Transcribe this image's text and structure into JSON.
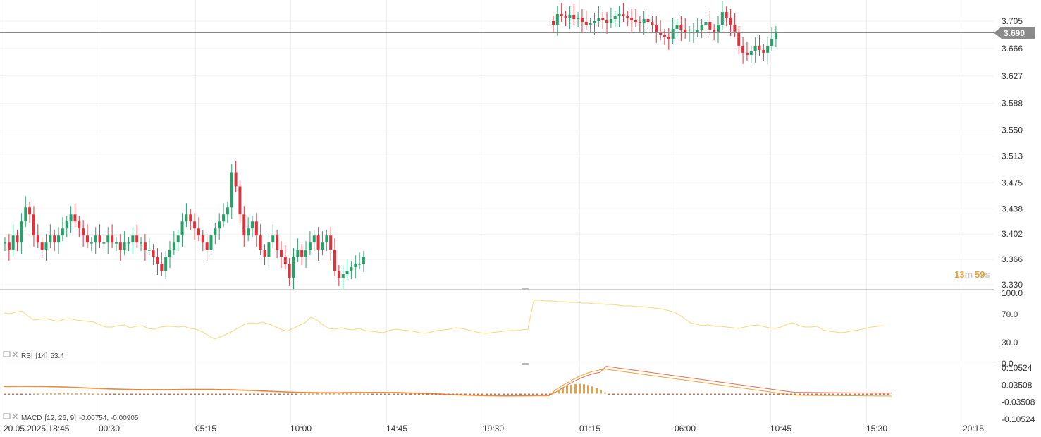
{
  "chart_data": [
    {
      "type": "candlestick",
      "title": "",
      "ylim": [
        3.33,
        3.705
      ],
      "y_ticks": [
        "3.705",
        "3.666",
        "3.627",
        "3.588",
        "3.550",
        "3.513",
        "3.475",
        "3.438",
        "3.402",
        "3.366",
        "3.330"
      ],
      "x_ticks": [
        "20.05.2025 18:45",
        "00:30",
        "05:15",
        "10:00",
        "14:45",
        "19:30",
        "01:15",
        "06:00",
        "10:45",
        "15:30",
        "20:15"
      ],
      "last_price": "3.690",
      "countdown": {
        "minutes": "13",
        "m": "m",
        "seconds": "59",
        "s": "s"
      },
      "colors": {
        "up": "#26a269",
        "down": "#e0313c",
        "price_line": "#888888",
        "badge": "#8a8a8a"
      },
      "close_segment_1": [
        3.39,
        3.38,
        3.4,
        3.39,
        3.42,
        3.44,
        3.43,
        3.4,
        3.39,
        3.38,
        3.39,
        3.4,
        3.39,
        3.4,
        3.41,
        3.42,
        3.43,
        3.42,
        3.41,
        3.4,
        3.39,
        3.39,
        3.4,
        3.39,
        3.39,
        3.4,
        3.39,
        3.39,
        3.38,
        3.39,
        3.39,
        3.4,
        3.39,
        3.39,
        3.38,
        3.38,
        3.37,
        3.36,
        3.35,
        3.37,
        3.38,
        3.39,
        3.4,
        3.42,
        3.43,
        3.42,
        3.41,
        3.4,
        3.39,
        3.38,
        3.4,
        3.41,
        3.42,
        3.43,
        3.44,
        3.49,
        3.47,
        3.43,
        3.4,
        3.41,
        3.42,
        3.4,
        3.38,
        3.37,
        3.39,
        3.4,
        3.38,
        3.37,
        3.36,
        3.34,
        3.37,
        3.38,
        3.37,
        3.38,
        3.39,
        3.4,
        3.38,
        3.39,
        3.4,
        3.38,
        3.35,
        3.34,
        3.345,
        3.35,
        3.355,
        3.36,
        3.36,
        3.37
      ],
      "close_segment_2": [
        3.7,
        3.715,
        3.712,
        3.71,
        3.714,
        3.708,
        3.71,
        3.704,
        3.7,
        3.702,
        3.705,
        3.71,
        3.706,
        3.703,
        3.708,
        3.712,
        3.715,
        3.712,
        3.71,
        3.706,
        3.704,
        3.702,
        3.708,
        3.704,
        3.7,
        3.69,
        3.686,
        3.683,
        3.68,
        3.694,
        3.7,
        3.693,
        3.688,
        3.69,
        3.69,
        3.693,
        3.7,
        3.704,
        3.693,
        3.69,
        3.7,
        3.718,
        3.71,
        3.7,
        3.69,
        3.67,
        3.66,
        3.657,
        3.662,
        3.67,
        3.664,
        3.66,
        3.67,
        3.68,
        3.69
      ]
    },
    {
      "type": "line",
      "name": "RSI",
      "params": "[14]",
      "value": "53.4",
      "ylim": [
        0,
        100
      ],
      "y_ticks": [
        "100.0",
        "70.0",
        "30.0",
        "0.0"
      ],
      "color": "#f6d77a",
      "values": [
        72,
        71,
        73,
        75,
        68,
        62,
        63,
        64,
        62,
        60,
        63,
        64,
        62,
        61,
        60,
        59,
        55,
        52,
        52,
        54,
        55,
        51,
        53,
        54,
        50,
        49,
        52,
        53,
        53,
        52,
        53,
        50,
        49,
        45,
        40,
        35,
        38,
        42,
        46,
        51,
        56,
        58,
        57,
        59,
        56,
        53,
        49,
        46,
        50,
        54,
        58,
        66,
        62,
        55,
        50,
        49,
        51,
        49,
        48,
        50,
        47,
        46,
        45,
        44,
        47,
        49,
        48,
        47,
        46,
        44,
        43,
        45,
        47,
        48,
        49,
        51,
        50,
        48,
        46,
        44,
        43,
        44,
        45,
        46,
        47,
        47,
        48,
        49,
        90,
        90,
        89,
        89,
        88,
        88,
        87,
        87,
        86,
        86,
        85,
        85,
        84,
        84,
        83,
        82,
        82,
        81,
        81,
        80,
        79,
        78,
        76,
        74,
        70,
        64,
        58,
        56,
        54,
        55,
        53,
        53,
        52,
        51,
        50,
        52,
        54,
        55,
        53,
        51,
        50,
        52,
        56,
        58,
        54,
        52,
        52,
        53,
        48,
        46,
        45,
        44,
        45,
        47,
        48,
        50,
        52,
        53,
        54
      ]
    },
    {
      "type": "bar+line",
      "name": "MACD",
      "params": "[12, 26, 9]",
      "values_label": "-0.00754,  -0.00905",
      "ylim": [
        -0.10524,
        0.10524
      ],
      "y_ticks": [
        "0.10524",
        "0.03508",
        "-0.03508",
        "-0.10524"
      ],
      "colors": {
        "macd": "#f0a030",
        "signal": "#e07050",
        "histogram": "#f0a030",
        "histogram_neg": "#e8663c"
      }
    }
  ]
}
